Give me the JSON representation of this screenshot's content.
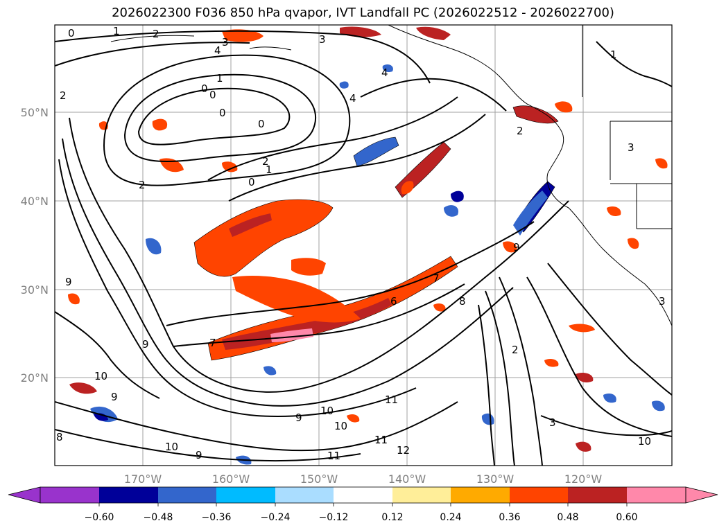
{
  "title": "2026022300 F036 850 hPa qvapor, IVT Landfall PC (2026022512 - 2026022700)",
  "map": {
    "lat_labels": [
      "50°N",
      "40°N",
      "30°N",
      "20°N"
    ],
    "lon_labels": [
      "170°W",
      "160°W",
      "150°W",
      "140°W",
      "130°W",
      "120°W"
    ],
    "contour_labels": [
      "0",
      "1",
      "2",
      "3",
      "4",
      "0",
      "0",
      "0",
      "0",
      "2",
      "1",
      "0",
      "2",
      "3",
      "4",
      "4",
      "2",
      "1",
      "1",
      "2",
      "3",
      "7",
      "6",
      "7",
      "8",
      "9",
      "2",
      "9",
      "10",
      "9",
      "10",
      "11",
      "11",
      "12",
      "9",
      "10",
      "11",
      "3",
      "10",
      "9",
      "10",
      "8",
      "3",
      "9"
    ]
  },
  "colorbar": {
    "colors": [
      "#9933cc",
      "#000099",
      "#3366cc",
      "#00bbff",
      "#aaddff",
      "#ffffff",
      "#ffee99",
      "#ffaa00",
      "#ff4400",
      "#bb2222",
      "#ff88aa"
    ],
    "tick_labels": [
      "−0.60",
      "−0.48",
      "−0.36",
      "−0.24",
      "−0.12",
      "0.12",
      "0.24",
      "0.36",
      "0.48",
      "0.60"
    ],
    "extend": "both"
  }
}
